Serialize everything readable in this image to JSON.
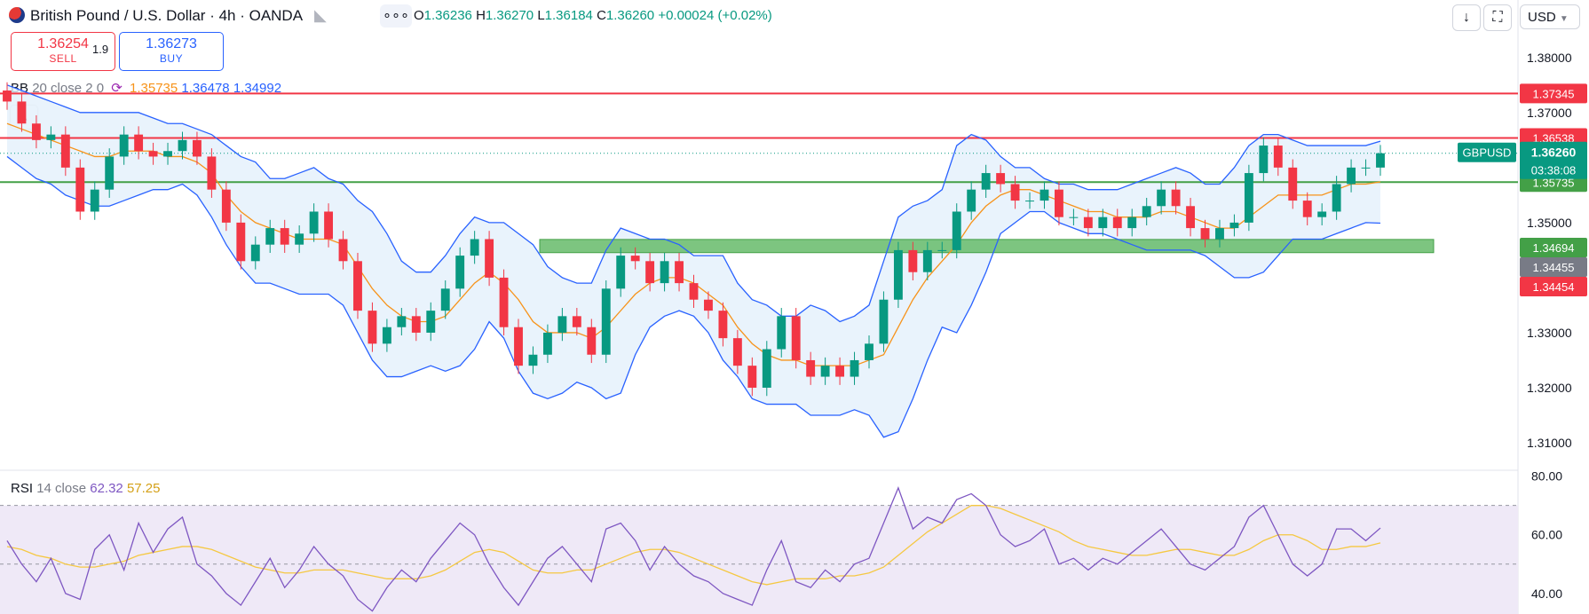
{
  "header": {
    "symbol_title": "British Pound / U.S. Dollar · 4h · OANDA",
    "ohlc": {
      "o_label": "O",
      "o": "1.36236",
      "h_label": "H",
      "h": "1.36270",
      "l_label": "L",
      "l": "1.36184",
      "c_label": "C",
      "c": "1.36260",
      "change": "+0.00024 (+0.02%)"
    },
    "more_label": "∘∘∘",
    "currency": "USD",
    "download_icon": "arrow-down-icon",
    "fullscreen_icon": "fullscreen-icon"
  },
  "trade": {
    "sell_price": "1.36254",
    "sell_label": "SELL",
    "spread": "1.9",
    "buy_price": "1.36273",
    "buy_label": "BUY"
  },
  "indicators": {
    "bb": {
      "name": "BB",
      "params": "20 close 2 0",
      "basis": "1.35735",
      "upper": "1.36478",
      "lower": "1.34992",
      "basis_color": "#f7931a",
      "band_color": "#2962ff"
    },
    "rsi": {
      "name": "RSI",
      "params": "14 close",
      "value": "62.32",
      "ma": "57.25",
      "rsi_color": "#7e57c2",
      "ma_color": "#f5c842"
    }
  },
  "price_labels": {
    "symbol_tag": "GBPUSD",
    "last": "1.36260",
    "countdown": "03:38:08"
  },
  "colors": {
    "up": "#089981",
    "down": "#f23645",
    "resistance": "#f23645",
    "support": "#43a047",
    "zone": "#66bb6a",
    "band_fill": "#e3f0fb",
    "rsi_fill": "#efe9f7"
  },
  "chart_data": {
    "type": "line",
    "title": "British Pound / U.S. Dollar · 4h · OANDA",
    "interval": "4h",
    "ylim": [
      1.305,
      1.384
    ],
    "yticks": [
      "1.38000",
      "1.37000",
      "1.36000",
      "1.35000",
      "1.34000",
      "1.33000",
      "1.32000",
      "1.31000"
    ],
    "ytick_values": [
      1.38,
      1.37,
      1.36,
      1.35,
      1.34,
      1.33,
      1.32,
      1.31
    ],
    "series": [
      {
        "name": "GBPUSD",
        "values": [
          1.372,
          1.368,
          1.365,
          1.366,
          1.36,
          1.352,
          1.356,
          1.362,
          1.366,
          1.363,
          1.362,
          1.363,
          1.365,
          1.362,
          1.356,
          1.35,
          1.343,
          1.346,
          1.349,
          1.346,
          1.348,
          1.352,
          1.347,
          1.343,
          1.334,
          1.328,
          1.331,
          1.333,
          1.33,
          1.334,
          1.338,
          1.344,
          1.347,
          1.34,
          1.331,
          1.324,
          1.326,
          1.33,
          1.333,
          1.331,
          1.326,
          1.338,
          1.344,
          1.343,
          1.339,
          1.343,
          1.339,
          1.336,
          1.334,
          1.329,
          1.324,
          1.32,
          1.327,
          1.333,
          1.325,
          1.322,
          1.324,
          1.322,
          1.325,
          1.328,
          1.336,
          1.345,
          1.341,
          1.345,
          1.345,
          1.352,
          1.356,
          1.359,
          1.357,
          1.354,
          1.354,
          1.356,
          1.351,
          1.351,
          1.349,
          1.351,
          1.349,
          1.351,
          1.353,
          1.356,
          1.353,
          1.349,
          1.347,
          1.349,
          1.35,
          1.359,
          1.364,
          1.36,
          1.354,
          1.351,
          1.352,
          1.357,
          1.36,
          1.36,
          1.3626
        ]
      },
      {
        "name": "BB basis",
        "values": [
          1.368,
          1.367,
          1.366,
          1.365,
          1.364,
          1.363,
          1.362,
          1.362,
          1.363,
          1.363,
          1.363,
          1.362,
          1.362,
          1.361,
          1.359,
          1.355,
          1.352,
          1.35,
          1.349,
          1.348,
          1.347,
          1.347,
          1.347,
          1.346,
          1.342,
          1.338,
          1.335,
          1.333,
          1.332,
          1.332,
          1.333,
          1.336,
          1.339,
          1.341,
          1.339,
          1.336,
          1.332,
          1.33,
          1.33,
          1.33,
          1.329,
          1.331,
          1.334,
          1.337,
          1.339,
          1.34,
          1.34,
          1.339,
          1.337,
          1.335,
          1.331,
          1.328,
          1.326,
          1.325,
          1.325,
          1.324,
          1.324,
          1.324,
          1.324,
          1.325,
          1.326,
          1.331,
          1.336,
          1.34,
          1.343,
          1.346,
          1.35,
          1.353,
          1.355,
          1.356,
          1.356,
          1.355,
          1.354,
          1.353,
          1.352,
          1.352,
          1.351,
          1.351,
          1.351,
          1.352,
          1.352,
          1.351,
          1.35,
          1.349,
          1.349,
          1.351,
          1.353,
          1.355,
          1.355,
          1.355,
          1.355,
          1.356,
          1.357,
          1.357,
          1.3574
        ]
      },
      {
        "name": "BB upper",
        "values": [
          1.375,
          1.374,
          1.373,
          1.372,
          1.371,
          1.37,
          1.37,
          1.37,
          1.37,
          1.37,
          1.369,
          1.368,
          1.368,
          1.367,
          1.366,
          1.364,
          1.362,
          1.361,
          1.358,
          1.358,
          1.359,
          1.36,
          1.358,
          1.357,
          1.354,
          1.352,
          1.348,
          1.343,
          1.341,
          1.341,
          1.344,
          1.348,
          1.351,
          1.35,
          1.35,
          1.348,
          1.346,
          1.342,
          1.34,
          1.339,
          1.339,
          1.345,
          1.349,
          1.348,
          1.347,
          1.347,
          1.346,
          1.344,
          1.344,
          1.344,
          1.339,
          1.336,
          1.335,
          1.333,
          1.333,
          1.335,
          1.334,
          1.332,
          1.333,
          1.335,
          1.343,
          1.351,
          1.353,
          1.354,
          1.356,
          1.364,
          1.366,
          1.365,
          1.362,
          1.36,
          1.36,
          1.358,
          1.357,
          1.357,
          1.356,
          1.356,
          1.356,
          1.357,
          1.358,
          1.359,
          1.36,
          1.359,
          1.357,
          1.357,
          1.36,
          1.364,
          1.366,
          1.366,
          1.365,
          1.364,
          1.364,
          1.364,
          1.364,
          1.364,
          1.3648
        ]
      },
      {
        "name": "BB lower",
        "values": [
          1.362,
          1.36,
          1.358,
          1.357,
          1.355,
          1.354,
          1.353,
          1.353,
          1.354,
          1.355,
          1.356,
          1.356,
          1.357,
          1.355,
          1.351,
          1.346,
          1.342,
          1.339,
          1.339,
          1.338,
          1.337,
          1.337,
          1.337,
          1.335,
          1.33,
          1.325,
          1.322,
          1.322,
          1.323,
          1.324,
          1.323,
          1.324,
          1.327,
          1.332,
          1.329,
          1.323,
          1.319,
          1.318,
          1.319,
          1.321,
          1.32,
          1.318,
          1.319,
          1.326,
          1.331,
          1.333,
          1.334,
          1.333,
          1.33,
          1.325,
          1.322,
          1.318,
          1.317,
          1.317,
          1.317,
          1.315,
          1.315,
          1.315,
          1.316,
          1.315,
          1.311,
          1.312,
          1.318,
          1.325,
          1.331,
          1.33,
          1.335,
          1.341,
          1.348,
          1.35,
          1.352,
          1.352,
          1.35,
          1.349,
          1.348,
          1.348,
          1.347,
          1.346,
          1.345,
          1.345,
          1.345,
          1.345,
          1.344,
          1.342,
          1.34,
          1.34,
          1.341,
          1.344,
          1.347,
          1.347,
          1.347,
          1.348,
          1.349,
          1.35,
          1.3499
        ]
      }
    ],
    "levels": [
      {
        "price": 1.37345,
        "label": "1.37345",
        "style": "resistance"
      },
      {
        "price": 1.36538,
        "label": "1.36538",
        "style": "resistance"
      },
      {
        "price": 1.35735,
        "label": "1.35735",
        "style": "support"
      }
    ],
    "zone": {
      "top": 1.34694,
      "bottom": 1.34454,
      "labels": [
        "1.34694",
        "1.34455",
        "1.34454"
      ]
    },
    "rsi": {
      "ylim": [
        33,
        82
      ],
      "yticks": [
        "80.00",
        "60.00",
        "40.00"
      ],
      "ytick_values": [
        80,
        60,
        40
      ],
      "bands": [
        70,
        50
      ],
      "values": [
        58,
        50,
        44,
        52,
        40,
        38,
        55,
        60,
        48,
        64,
        54,
        62,
        66,
        50,
        46,
        40,
        36,
        44,
        52,
        42,
        48,
        56,
        50,
        46,
        38,
        34,
        42,
        48,
        44,
        52,
        58,
        64,
        60,
        50,
        42,
        36,
        44,
        52,
        56,
        50,
        44,
        62,
        64,
        58,
        48,
        56,
        50,
        46,
        44,
        40,
        38,
        36,
        48,
        58,
        44,
        42,
        48,
        44,
        50,
        52,
        64,
        76,
        62,
        66,
        64,
        72,
        74,
        70,
        60,
        56,
        58,
        62,
        50,
        52,
        48,
        52,
        50,
        54,
        58,
        62,
        56,
        50,
        48,
        52,
        56,
        66,
        70,
        60,
        50,
        46,
        50,
        62,
        62,
        58,
        62.32
      ],
      "ma": [
        56,
        55,
        53,
        52,
        50,
        49,
        49,
        50,
        51,
        53,
        54,
        55,
        56,
        56,
        55,
        53,
        51,
        49,
        48,
        47,
        47,
        48,
        48,
        48,
        47,
        46,
        45,
        45,
        45,
        46,
        48,
        51,
        54,
        55,
        54,
        51,
        48,
        47,
        47,
        48,
        48,
        50,
        52,
        54,
        55,
        55,
        54,
        52,
        50,
        48,
        46,
        44,
        43,
        44,
        45,
        45,
        45,
        46,
        46,
        47,
        49,
        53,
        57,
        61,
        64,
        67,
        70,
        70,
        69,
        67,
        65,
        63,
        61,
        58,
        56,
        55,
        54,
        53,
        53,
        54,
        55,
        55,
        54,
        53,
        53,
        55,
        58,
        60,
        60,
        58,
        55,
        55,
        56,
        56,
        57.25
      ]
    }
  }
}
